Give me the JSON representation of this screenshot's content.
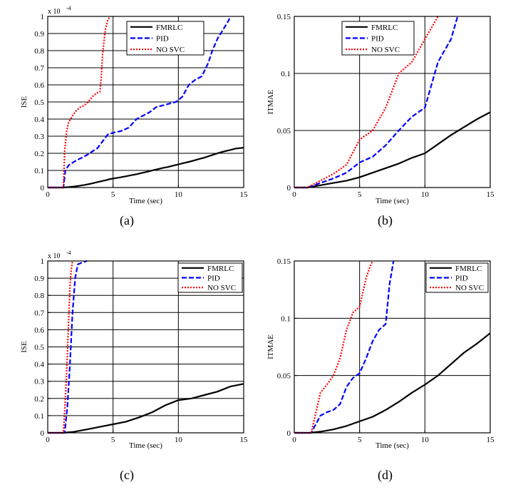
{
  "chart_data": [
    {
      "id": "a",
      "type": "line",
      "panel_label": "(a)",
      "xlabel": "Time (sec)",
      "ylabel": "ISE",
      "xlim": [
        0,
        15
      ],
      "ylim": [
        0,
        1
      ],
      "xticks": [
        0,
        5,
        10,
        15
      ],
      "yticks": [
        0,
        0.1,
        0.2,
        0.3,
        0.4,
        0.5,
        0.6,
        0.7,
        0.8,
        0.9,
        1
      ],
      "y_multiplier": "x 10",
      "y_exponent": "-4",
      "grid": true,
      "legend_position": "top-right",
      "series": [
        {
          "name": "FMRLC",
          "color": "#000000",
          "dash": "solid",
          "x": [
            0,
            1.2,
            1.6,
            2,
            2.4,
            2.8,
            3.2,
            3.6,
            4,
            4.4,
            4.8,
            5.2,
            5.6,
            6,
            6.4,
            6.8,
            7.2,
            7.6,
            8,
            8.4,
            8.8,
            9.2,
            9.6,
            10,
            10.4,
            10.8,
            11.2,
            11.6,
            12,
            12.4,
            12.8,
            13.2,
            13.6,
            14,
            14.4,
            15
          ],
          "y": [
            0,
            0,
            0.003,
            0.006,
            0.01,
            0.015,
            0.021,
            0.028,
            0.035,
            0.042,
            0.05,
            0.055,
            0.06,
            0.066,
            0.072,
            0.078,
            0.085,
            0.092,
            0.1,
            0.107,
            0.114,
            0.12,
            0.128,
            0.135,
            0.143,
            0.15,
            0.158,
            0.167,
            0.175,
            0.185,
            0.195,
            0.205,
            0.213,
            0.22,
            0.228,
            0.233
          ]
        },
        {
          "name": "PID",
          "color": "#0000ff",
          "dash": "dash",
          "x": [
            0,
            1.2,
            1.35,
            1.6,
            2,
            2.5,
            3,
            3.4,
            3.8,
            4.2,
            4.6,
            5,
            5.6,
            6.2,
            6.8,
            7.3,
            7.8,
            8.3,
            8.8,
            9.3,
            9.8,
            10.3,
            10.8,
            11.3,
            11.8,
            12.3,
            12.6,
            13,
            13.4,
            13.8,
            14
          ],
          "y": [
            0,
            0,
            0.1,
            0.13,
            0.15,
            0.17,
            0.19,
            0.21,
            0.23,
            0.27,
            0.31,
            0.32,
            0.33,
            0.35,
            0.4,
            0.42,
            0.44,
            0.47,
            0.48,
            0.49,
            0.5,
            0.53,
            0.6,
            0.63,
            0.65,
            0.73,
            0.8,
            0.87,
            0.92,
            0.97,
            1
          ]
        },
        {
          "name": "NO SVC",
          "color": "#ff0000",
          "dash": "dot",
          "x": [
            0,
            1.2,
            1.3,
            1.45,
            1.6,
            1.9,
            2.2,
            2.5,
            2.8,
            3.1,
            3.4,
            3.7,
            4,
            4.1,
            4.2,
            4.4,
            4.6,
            4.8
          ],
          "y": [
            0,
            0,
            0.22,
            0.33,
            0.38,
            0.42,
            0.45,
            0.47,
            0.48,
            0.5,
            0.53,
            0.55,
            0.56,
            0.65,
            0.78,
            0.92,
            0.98,
            1
          ]
        }
      ]
    },
    {
      "id": "b",
      "type": "line",
      "panel_label": "(b)",
      "xlabel": "Time (sec)",
      "ylabel": "ITMAE",
      "xlim": [
        0,
        15
      ],
      "ylim": [
        0,
        0.15
      ],
      "xticks": [
        0,
        5,
        10,
        15
      ],
      "yticks": [
        0,
        0.05,
        0.1,
        0.15
      ],
      "grid": true,
      "legend_position": "top-right",
      "series": [
        {
          "name": "FMRLC",
          "color": "#000000",
          "dash": "solid",
          "x": [
            0,
            1,
            2,
            3,
            4,
            5,
            6,
            7,
            8,
            9,
            10,
            11,
            12,
            13,
            14,
            15
          ],
          "y": [
            0,
            0,
            0.002,
            0.004,
            0.006,
            0.009,
            0.013,
            0.017,
            0.021,
            0.026,
            0.03,
            0.038,
            0.046,
            0.053,
            0.06,
            0.066
          ]
        },
        {
          "name": "PID",
          "color": "#0000ff",
          "dash": "dash",
          "x": [
            0,
            1,
            2,
            3,
            4,
            5,
            6,
            7,
            8,
            9,
            10,
            10.5,
            11,
            11.5,
            12,
            12.5
          ],
          "y": [
            0,
            0,
            0.004,
            0.008,
            0.013,
            0.022,
            0.027,
            0.037,
            0.05,
            0.062,
            0.07,
            0.09,
            0.11,
            0.12,
            0.13,
            0.15
          ]
        },
        {
          "name": "NO SVC",
          "color": "#ff0000",
          "dash": "dot",
          "x": [
            0,
            1,
            2,
            3,
            4,
            5,
            6,
            7,
            8,
            9,
            10,
            10.5,
            11
          ],
          "y": [
            0,
            0,
            0.006,
            0.012,
            0.02,
            0.042,
            0.05,
            0.07,
            0.1,
            0.11,
            0.13,
            0.14,
            0.15
          ]
        }
      ]
    },
    {
      "id": "c",
      "type": "line",
      "panel_label": "(c)",
      "xlabel": "Time (sec)",
      "ylabel": "ISE",
      "xlim": [
        0,
        15
      ],
      "ylim": [
        0,
        1
      ],
      "xticks": [
        0,
        5,
        10,
        15
      ],
      "yticks": [
        0,
        0.1,
        0.2,
        0.3,
        0.4,
        0.5,
        0.6,
        0.7,
        0.8,
        0.9,
        1
      ],
      "y_multiplier": "x 10",
      "y_exponent": "-4",
      "grid": true,
      "legend_position": "top-right",
      "series": [
        {
          "name": "FMRLC",
          "color": "#000000",
          "dash": "solid",
          "x": [
            0,
            1.2,
            2,
            3,
            4,
            5,
            6,
            7,
            8,
            9,
            10,
            11,
            12,
            13,
            14,
            15
          ],
          "y": [
            0,
            0,
            0.006,
            0.02,
            0.035,
            0.05,
            0.065,
            0.09,
            0.12,
            0.16,
            0.19,
            0.2,
            0.22,
            0.24,
            0.27,
            0.285
          ]
        },
        {
          "name": "PID",
          "color": "#0000ff",
          "dash": "dash",
          "x": [
            0,
            1.3,
            1.5,
            1.7,
            1.9,
            2.1,
            2.3,
            2.6,
            3
          ],
          "y": [
            0,
            0,
            0.15,
            0.4,
            0.7,
            0.9,
            0.98,
            0.99,
            1
          ]
        },
        {
          "name": "NO SVC",
          "color": "#ff0000",
          "dash": "dot",
          "x": [
            0,
            1.2,
            1.35,
            1.5,
            1.6,
            1.7,
            1.8,
            1.9
          ],
          "y": [
            0,
            0,
            0.2,
            0.45,
            0.65,
            0.85,
            0.95,
            1
          ]
        }
      ]
    },
    {
      "id": "d",
      "type": "line",
      "panel_label": "(d)",
      "xlabel": "Time (sec)",
      "ylabel": "ITMAE",
      "xlim": [
        0,
        15
      ],
      "ylim": [
        0,
        0.15
      ],
      "xticks": [
        0,
        5,
        10,
        15
      ],
      "yticks": [
        0,
        0.05,
        0.1,
        0.15
      ],
      "grid": true,
      "legend_position": "top-right",
      "series": [
        {
          "name": "FMRLC",
          "color": "#000000",
          "dash": "solid",
          "x": [
            0,
            1.2,
            2,
            3,
            4,
            5,
            6,
            7,
            8,
            9,
            10,
            11,
            12,
            13,
            14,
            15
          ],
          "y": [
            0,
            0,
            0.001,
            0.003,
            0.006,
            0.01,
            0.014,
            0.02,
            0.027,
            0.035,
            0.042,
            0.05,
            0.06,
            0.07,
            0.078,
            0.087
          ]
        },
        {
          "name": "PID",
          "color": "#0000ff",
          "dash": "dash",
          "x": [
            0,
            1.3,
            2,
            2.5,
            3,
            3.5,
            4,
            4.5,
            5,
            5.5,
            6,
            6.5,
            7,
            7.3,
            7.6
          ],
          "y": [
            0,
            0,
            0.015,
            0.018,
            0.02,
            0.025,
            0.04,
            0.048,
            0.052,
            0.065,
            0.08,
            0.09,
            0.095,
            0.13,
            0.15
          ]
        },
        {
          "name": "NO SVC",
          "color": "#ff0000",
          "dash": "dot",
          "x": [
            0,
            1.3,
            1.7,
            2,
            2.5,
            3,
            3.5,
            4,
            4.5,
            5,
            5.5,
            5.8,
            6
          ],
          "y": [
            0,
            0,
            0.02,
            0.035,
            0.042,
            0.05,
            0.065,
            0.09,
            0.105,
            0.11,
            0.135,
            0.145,
            0.15
          ]
        }
      ]
    }
  ]
}
